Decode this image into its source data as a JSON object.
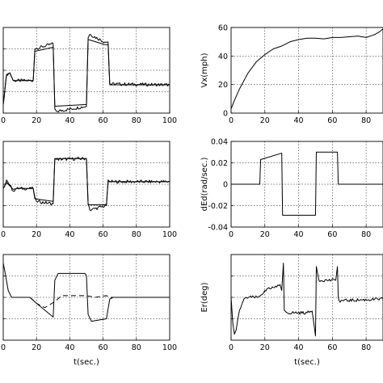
{
  "chart_data": [
    {
      "panel": "left-top",
      "type": "line",
      "xlim": [
        0,
        100
      ],
      "ylim": [
        0,
        1
      ],
      "x_ticks": [
        "0",
        "20",
        "40",
        "60",
        "80",
        "100"
      ],
      "y_ticks": [],
      "ylabel": "",
      "xlabel": "",
      "grid": true,
      "series": [
        {
          "style": "solid-noisy",
          "points": [
            [
              0,
              0.1
            ],
            [
              2,
              0.45
            ],
            [
              4,
              0.47
            ],
            [
              6,
              0.38
            ],
            [
              18,
              0.38
            ],
            [
              19,
              0.75
            ],
            [
              30,
              0.81
            ],
            [
              31,
              0.05
            ],
            [
              32,
              0.02
            ],
            [
              50,
              0.08
            ],
            [
              51,
              0.88
            ],
            [
              52,
              0.92
            ],
            [
              61,
              0.83
            ],
            [
              63,
              0.83
            ],
            [
              64,
              0.34
            ],
            [
              100,
              0.33
            ]
          ]
        },
        {
          "style": "solid",
          "points": [
            [
              0,
              0.1
            ],
            [
              2,
              0.45
            ],
            [
              4,
              0.47
            ],
            [
              6,
              0.38
            ],
            [
              18,
              0.38
            ],
            [
              19,
              0.72
            ],
            [
              30,
              0.77
            ],
            [
              31,
              0.08
            ],
            [
              50,
              0.1
            ],
            [
              51,
              0.86
            ],
            [
              61,
              0.8
            ],
            [
              63,
              0.8
            ],
            [
              64,
              0.33
            ],
            [
              100,
              0.33
            ]
          ]
        }
      ]
    },
    {
      "panel": "left-middle",
      "type": "line",
      "xlim": [
        0,
        100
      ],
      "ylim": [
        0,
        1
      ],
      "x_ticks": [
        "0",
        "20",
        "40",
        "60",
        "80",
        "100"
      ],
      "y_ticks": [],
      "ylabel": "",
      "xlabel": "",
      "grid": true,
      "series": [
        {
          "style": "solid-noisy",
          "points": [
            [
              0,
              0.45
            ],
            [
              2,
              0.55
            ],
            [
              4,
              0.49
            ],
            [
              6,
              0.42
            ],
            [
              8,
              0.45
            ],
            [
              18,
              0.45
            ],
            [
              19,
              0.35
            ],
            [
              20,
              0.3
            ],
            [
              30,
              0.27
            ],
            [
              31,
              0.8
            ],
            [
              32,
              0.79
            ],
            [
              50,
              0.8
            ],
            [
              51,
              0.28
            ],
            [
              52,
              0.2
            ],
            [
              62,
              0.25
            ],
            [
              63,
              0.55
            ],
            [
              64,
              0.53
            ],
            [
              66,
              0.53
            ],
            [
              100,
              0.53
            ]
          ]
        },
        {
          "style": "solid",
          "points": [
            [
              0,
              0.45
            ],
            [
              2,
              0.52
            ],
            [
              4,
              0.48
            ],
            [
              6,
              0.44
            ],
            [
              8,
              0.45
            ],
            [
              18,
              0.45
            ],
            [
              19,
              0.33
            ],
            [
              30,
              0.3
            ],
            [
              31,
              0.8
            ],
            [
              50,
              0.8
            ],
            [
              51,
              0.26
            ],
            [
              62,
              0.26
            ],
            [
              63,
              0.53
            ],
            [
              100,
              0.53
            ]
          ]
        }
      ]
    },
    {
      "panel": "left-bottom",
      "type": "line",
      "xlim": [
        0,
        100
      ],
      "ylim": [
        0,
        1
      ],
      "x_ticks": [
        "0",
        "20",
        "40",
        "60",
        "80",
        "100"
      ],
      "y_ticks": [],
      "ylabel": "",
      "xlabel": "t(sec.)",
      "grid": true,
      "series": [
        {
          "style": "solid",
          "points": [
            [
              0,
              0.9
            ],
            [
              1,
              0.8
            ],
            [
              3,
              0.58
            ],
            [
              5,
              0.5
            ],
            [
              7,
              0.5
            ],
            [
              16,
              0.5
            ],
            [
              20,
              0.43
            ],
            [
              25,
              0.35
            ],
            [
              30,
              0.27
            ],
            [
              31,
              0.7
            ],
            [
              33,
              0.78
            ],
            [
              49,
              0.78
            ],
            [
              50,
              0.75
            ],
            [
              51,
              0.3
            ],
            [
              53,
              0.22
            ],
            [
              62,
              0.25
            ],
            [
              64,
              0.48
            ],
            [
              66,
              0.5
            ],
            [
              100,
              0.5
            ]
          ]
        },
        {
          "style": "dashed",
          "points": [
            [
              16,
              0.5
            ],
            [
              20,
              0.43
            ],
            [
              25,
              0.38
            ],
            [
              31,
              0.45
            ],
            [
              35,
              0.52
            ],
            [
              45,
              0.52
            ],
            [
              50,
              0.52
            ],
            [
              55,
              0.5
            ],
            [
              62,
              0.52
            ],
            [
              64,
              0.5
            ],
            [
              100,
              0.5
            ]
          ]
        }
      ]
    },
    {
      "panel": "right-top",
      "type": "line",
      "xlim": [
        0,
        90
      ],
      "ylim": [
        0,
        60
      ],
      "x_ticks": [
        "0",
        "20",
        "40",
        "60",
        "80"
      ],
      "y_ticks": [
        "0",
        "20",
        "40",
        "60"
      ],
      "ylabel": "Vx(mph)",
      "xlabel": "",
      "grid": true,
      "series": [
        {
          "style": "solid",
          "points": [
            [
              0,
              3
            ],
            [
              2,
              9
            ],
            [
              5,
              17
            ],
            [
              10,
              28
            ],
            [
              15,
              36
            ],
            [
              20,
              41
            ],
            [
              25,
              45
            ],
            [
              30,
              47
            ],
            [
              35,
              50
            ],
            [
              40,
              51.5
            ],
            [
              45,
              52.5
            ],
            [
              50,
              52.5
            ],
            [
              55,
              52
            ],
            [
              60,
              53
            ],
            [
              65,
              53
            ],
            [
              70,
              53.5
            ],
            [
              75,
              54
            ],
            [
              80,
              53
            ],
            [
              85,
              55
            ],
            [
              88,
              57
            ],
            [
              90,
              59
            ]
          ]
        }
      ]
    },
    {
      "panel": "right-middle",
      "type": "line",
      "xlim": [
        0,
        90
      ],
      "ylim": [
        -0.04,
        0.04
      ],
      "x_ticks": [
        "0",
        "20",
        "40",
        "60",
        "80"
      ],
      "y_ticks": [
        "-0.04",
        "-0.02",
        "0",
        "0.02",
        "0.04"
      ],
      "ylabel": "dEd(rad/sec.)",
      "xlabel": "",
      "grid": true,
      "series": [
        {
          "style": "solid",
          "points": [
            [
              0,
              0
            ],
            [
              17,
              0
            ],
            [
              17.5,
              0.023
            ],
            [
              30,
              0.029
            ],
            [
              30.5,
              -0.029
            ],
            [
              50,
              -0.029
            ],
            [
              50.5,
              0.03
            ],
            [
              63,
              0.03
            ],
            [
              63.5,
              0
            ],
            [
              90,
              0
            ]
          ]
        }
      ]
    },
    {
      "panel": "right-bottom",
      "type": "line",
      "xlim": [
        0,
        90
      ],
      "ylim": [
        0,
        1
      ],
      "x_ticks": [
        "0",
        "20",
        "40",
        "60",
        "80"
      ],
      "y_ticks": [],
      "ylabel": "Er(deg)",
      "xlabel": "t(sec.)",
      "grid": true,
      "series": [
        {
          "style": "solid-noisy",
          "points": [
            [
              0,
              0.5
            ],
            [
              1,
              0.2
            ],
            [
              2,
              0.07
            ],
            [
              3,
              0.12
            ],
            [
              5,
              0.35
            ],
            [
              7,
              0.45
            ],
            [
              9,
              0.5
            ],
            [
              16,
              0.5
            ],
            [
              18,
              0.53
            ],
            [
              20,
              0.58
            ],
            [
              23,
              0.6
            ],
            [
              27,
              0.62
            ],
            [
              29,
              0.65
            ],
            [
              30,
              0.58
            ],
            [
              31,
              0.9
            ],
            [
              31.5,
              0.35
            ],
            [
              33,
              0.32
            ],
            [
              45,
              0.32
            ],
            [
              48,
              0.34
            ],
            [
              49,
              0.2
            ],
            [
              50,
              0.05
            ],
            [
              50.5,
              0.86
            ],
            [
              52,
              0.7
            ],
            [
              62,
              0.7
            ],
            [
              63,
              0.86
            ],
            [
              63.5,
              0.5
            ],
            [
              64,
              0.46
            ],
            [
              90,
              0.48
            ]
          ]
        }
      ]
    }
  ]
}
